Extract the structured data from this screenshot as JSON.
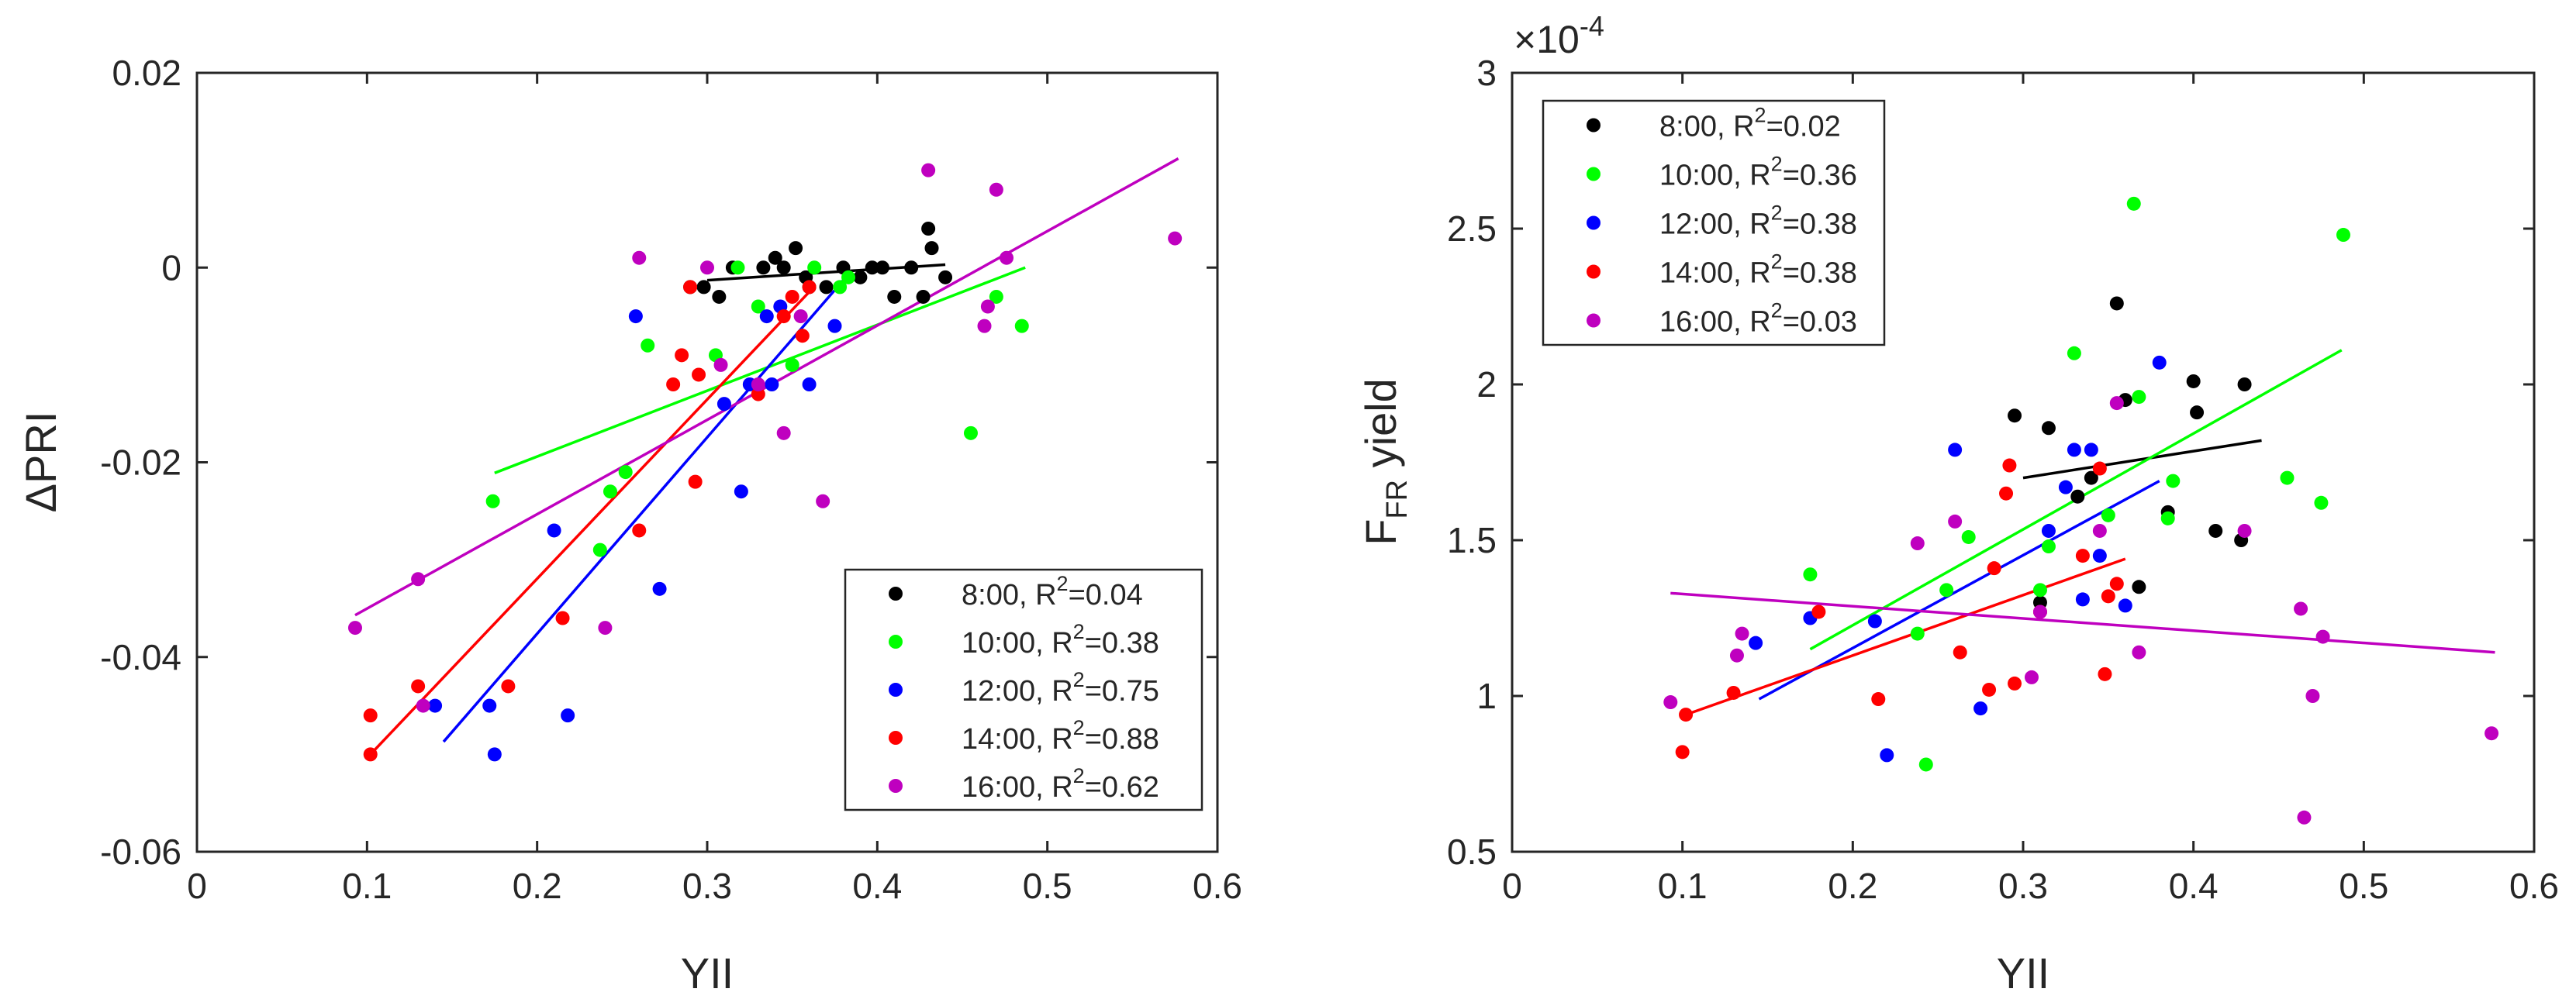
{
  "colors": {
    "8:00": "#000000",
    "10:00": "#00ff00",
    "12:00": "#0000ff",
    "14:00": "#ff0000",
    "16:00": "#bf00bf"
  },
  "chart_data": [
    {
      "id": "left",
      "type": "scatter",
      "xlabel": "YII",
      "ylabel": "ΔPRI",
      "xlim": [
        0,
        0.6
      ],
      "ylim": [
        -0.06,
        0.02
      ],
      "xticks": [
        "0",
        "0.1",
        "0.2",
        "0.3",
        "0.4",
        "0.5",
        "0.6"
      ],
      "yticks": [
        "-0.06",
        "-0.04",
        "-0.02",
        "0",
        "0.02"
      ],
      "legend_position": "bottom-right",
      "series": [
        {
          "name": "8:00",
          "label": "8:00,  R",
          "r2": "=0.04",
          "points": [
            [
              0.29,
              -0.002
            ],
            [
              0.298,
              -0.002
            ],
            [
              0.307,
              -0.003
            ],
            [
              0.315,
              0.0
            ],
            [
              0.333,
              0.0
            ],
            [
              0.34,
              0.001
            ],
            [
              0.345,
              0.0
            ],
            [
              0.352,
              0.002
            ],
            [
              0.358,
              -0.001
            ],
            [
              0.36,
              -0.002
            ],
            [
              0.37,
              -0.002
            ],
            [
              0.38,
              0.0
            ],
            [
              0.39,
              -0.001
            ],
            [
              0.397,
              0.0
            ],
            [
              0.403,
              0.0
            ],
            [
              0.41,
              -0.003
            ],
            [
              0.42,
              0.0
            ],
            [
              0.427,
              -0.003
            ],
            [
              0.43,
              0.004
            ],
            [
              0.432,
              0.002
            ],
            [
              0.44,
              -0.001
            ]
          ],
          "fit": [
            [
              0.3,
              -0.0013
            ],
            [
              0.44,
              0.0003
            ]
          ]
        },
        {
          "name": "10:00",
          "label": "10:00, R",
          "r2": "=0.38",
          "points": [
            [
              0.174,
              -0.024
            ],
            [
              0.237,
              -0.029
            ],
            [
              0.243,
              -0.023
            ],
            [
              0.252,
              -0.021
            ],
            [
              0.265,
              -0.008
            ],
            [
              0.305,
              -0.009
            ],
            [
              0.318,
              0.0
            ],
            [
              0.33,
              -0.004
            ],
            [
              0.35,
              -0.01
            ],
            [
              0.363,
              0.0
            ],
            [
              0.378,
              -0.002
            ],
            [
              0.383,
              -0.001
            ],
            [
              0.455,
              -0.017
            ],
            [
              0.47,
              -0.003
            ],
            [
              0.485,
              -0.006
            ]
          ],
          "fit": [
            [
              0.175,
              -0.0211
            ],
            [
              0.487,
              0.0
            ]
          ]
        },
        {
          "name": "12:00",
          "label": "12:00, R",
          "r2": "=0.75",
          "points": [
            [
              0.14,
              -0.045
            ],
            [
              0.172,
              -0.045
            ],
            [
              0.175,
              -0.05
            ],
            [
              0.21,
              -0.027
            ],
            [
              0.218,
              -0.046
            ],
            [
              0.258,
              -0.005
            ],
            [
              0.272,
              -0.033
            ],
            [
              0.31,
              -0.014
            ],
            [
              0.32,
              -0.023
            ],
            [
              0.325,
              -0.012
            ],
            [
              0.335,
              -0.005
            ],
            [
              0.338,
              -0.012
            ],
            [
              0.343,
              -0.004
            ],
            [
              0.36,
              -0.012
            ],
            [
              0.375,
              -0.006
            ]
          ],
          "fit": [
            [
              0.145,
              -0.0487
            ],
            [
              0.38,
              -0.0013
            ]
          ]
        },
        {
          "name": "14:00",
          "label": "14:00, R",
          "r2": "=0.88",
          "points": [
            [
              0.102,
              -0.05
            ],
            [
              0.102,
              -0.046
            ],
            [
              0.13,
              -0.043
            ],
            [
              0.183,
              -0.043
            ],
            [
              0.215,
              -0.036
            ],
            [
              0.26,
              -0.027
            ],
            [
              0.28,
              -0.012
            ],
            [
              0.285,
              -0.009
            ],
            [
              0.29,
              -0.002
            ],
            [
              0.293,
              -0.022
            ],
            [
              0.295,
              -0.011
            ],
            [
              0.33,
              -0.013
            ],
            [
              0.345,
              -0.005
            ],
            [
              0.35,
              -0.003
            ],
            [
              0.356,
              -0.007
            ],
            [
              0.36,
              -0.002
            ]
          ],
          "fit": [
            [
              0.102,
              -0.05
            ],
            [
              0.36,
              -0.0025
            ]
          ]
        },
        {
          "name": "16:00",
          "label": "16:00, R",
          "r2": "=0.62",
          "points": [
            [
              0.093,
              -0.037
            ],
            [
              0.13,
              -0.032
            ],
            [
              0.133,
              -0.045
            ],
            [
              0.24,
              -0.037
            ],
            [
              0.26,
              0.001
            ],
            [
              0.3,
              0.0
            ],
            [
              0.308,
              -0.01
            ],
            [
              0.33,
              -0.012
            ],
            [
              0.345,
              -0.017
            ],
            [
              0.355,
              -0.005
            ],
            [
              0.368,
              -0.024
            ],
            [
              0.43,
              0.01
            ],
            [
              0.463,
              -0.006
            ],
            [
              0.465,
              -0.004
            ],
            [
              0.47,
              0.008
            ],
            [
              0.476,
              0.001
            ],
            [
              0.575,
              0.003
            ]
          ],
          "fit": [
            [
              0.093,
              -0.0357
            ],
            [
              0.577,
              0.0112
            ]
          ]
        }
      ]
    },
    {
      "id": "right",
      "type": "scatter",
      "xlabel": "YII",
      "ylabel_main": "F",
      "ylabel_sub": "FR",
      "ylabel_rest": " yield",
      "exponent_base": "×10",
      "exponent": "-4",
      "xlim": [
        0,
        0.6
      ],
      "ylim": [
        0.5,
        3.0
      ],
      "xticks": [
        "0",
        "0.1",
        "0.2",
        "0.3",
        "0.4",
        "0.5",
        "0.6"
      ],
      "yticks": [
        "0.5",
        "1",
        "1.5",
        "2",
        "2.5",
        "3"
      ],
      "legend_position": "top-left",
      "series": [
        {
          "name": "8:00",
          "label": "8:00,  R",
          "r2": "=0.02",
          "points": [
            [
              0.295,
              1.9
            ],
            [
              0.31,
              1.3
            ],
            [
              0.315,
              1.86
            ],
            [
              0.332,
              1.64
            ],
            [
              0.34,
              1.7
            ],
            [
              0.355,
              2.26
            ],
            [
              0.36,
              1.95
            ],
            [
              0.368,
              1.35
            ],
            [
              0.385,
              1.59
            ],
            [
              0.4,
              2.01
            ],
            [
              0.402,
              1.91
            ],
            [
              0.413,
              1.53
            ],
            [
              0.428,
              1.5
            ],
            [
              0.43,
              2.0
            ]
          ],
          "fit": [
            [
              0.3,
              1.7
            ],
            [
              0.44,
              1.82
            ]
          ]
        },
        {
          "name": "10:00",
          "label": "10:00, R",
          "r2": "=0.36",
          "points": [
            [
              0.175,
              1.39
            ],
            [
              0.238,
              1.2
            ],
            [
              0.243,
              0.78
            ],
            [
              0.255,
              1.34
            ],
            [
              0.268,
              1.51
            ],
            [
              0.31,
              1.34
            ],
            [
              0.315,
              1.48
            ],
            [
              0.33,
              2.1
            ],
            [
              0.35,
              1.58
            ],
            [
              0.365,
              2.58
            ],
            [
              0.368,
              1.96
            ],
            [
              0.385,
              1.57
            ],
            [
              0.388,
              1.69
            ],
            [
              0.455,
              1.7
            ],
            [
              0.475,
              1.62
            ],
            [
              0.488,
              2.48
            ]
          ],
          "fit": [
            [
              0.175,
              1.15
            ],
            [
              0.487,
              2.11
            ]
          ]
        },
        {
          "name": "12:00",
          "label": "12:00, R",
          "r2": "=0.38",
          "points": [
            [
              0.143,
              1.17
            ],
            [
              0.175,
              1.25
            ],
            [
              0.213,
              1.24
            ],
            [
              0.22,
              0.81
            ],
            [
              0.26,
              1.79
            ],
            [
              0.275,
              0.96
            ],
            [
              0.315,
              1.53
            ],
            [
              0.325,
              1.67
            ],
            [
              0.33,
              1.79
            ],
            [
              0.335,
              1.31
            ],
            [
              0.34,
              1.79
            ],
            [
              0.345,
              1.45
            ],
            [
              0.36,
              1.29
            ],
            [
              0.38,
              2.07
            ]
          ],
          "fit": [
            [
              0.145,
              0.99
            ],
            [
              0.38,
              1.69
            ]
          ]
        },
        {
          "name": "14:00",
          "label": "14:00, R",
          "r2": "=0.38",
          "points": [
            [
              0.1,
              0.82
            ],
            [
              0.102,
              0.94
            ],
            [
              0.13,
              1.01
            ],
            [
              0.18,
              1.27
            ],
            [
              0.215,
              0.99
            ],
            [
              0.263,
              1.14
            ],
            [
              0.28,
              1.02
            ],
            [
              0.283,
              1.41
            ],
            [
              0.292,
              1.74
            ],
            [
              0.29,
              1.65
            ],
            [
              0.295,
              1.04
            ],
            [
              0.31,
              1.27
            ],
            [
              0.335,
              1.45
            ],
            [
              0.345,
              1.73
            ],
            [
              0.348,
              1.07
            ],
            [
              0.35,
              1.32
            ],
            [
              0.355,
              1.36
            ]
          ],
          "fit": [
            [
              0.102,
              0.94
            ],
            [
              0.36,
              1.44
            ]
          ]
        },
        {
          "name": "16:00",
          "label": "16:00, R",
          "r2": "=0.03",
          "points": [
            [
              0.093,
              0.98
            ],
            [
              0.132,
              1.13
            ],
            [
              0.135,
              1.2
            ],
            [
              0.238,
              1.49
            ],
            [
              0.26,
              1.56
            ],
            [
              0.305,
              1.06
            ],
            [
              0.31,
              1.27
            ],
            [
              0.345,
              1.53
            ],
            [
              0.355,
              1.94
            ],
            [
              0.368,
              1.14
            ],
            [
              0.43,
              1.53
            ],
            [
              0.463,
              1.28
            ],
            [
              0.465,
              0.61
            ],
            [
              0.47,
              1.0
            ],
            [
              0.476,
              1.19
            ],
            [
              0.575,
              0.88
            ]
          ],
          "fit": [
            [
              0.093,
              1.33
            ],
            [
              0.577,
              1.14
            ]
          ]
        }
      ]
    }
  ]
}
